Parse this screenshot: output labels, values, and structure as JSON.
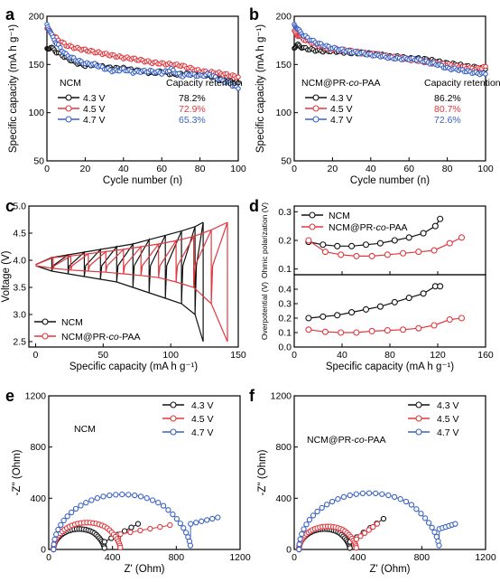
{
  "colors": {
    "black": "#111111",
    "red": "#e0383f",
    "blue": "#3a62c4"
  },
  "panels": [
    {
      "letter": "a"
    },
    {
      "letter": "b"
    },
    {
      "letter": "c"
    },
    {
      "letter": "d"
    },
    {
      "letter": "e"
    },
    {
      "letter": "f"
    }
  ],
  "chart_data": [
    {
      "panel": "a",
      "type": "scatter",
      "xlabel": "Cycle number (n)",
      "ylabel": "Specific capacity (mA h g⁻¹)",
      "xlim": [
        0,
        100
      ],
      "ylim": [
        50,
        200
      ],
      "xticks": [
        "0",
        "20",
        "40",
        "60",
        "80",
        "100"
      ],
      "yticks": [
        "50",
        "100",
        "150",
        "200"
      ],
      "header_name": "NCM",
      "header_retention": "Capacity retention",
      "series": [
        {
          "name": "4.3 V",
          "retention": "78.2%",
          "color": "black",
          "x": [
            0,
            2,
            5,
            10,
            15,
            20,
            25,
            30,
            35,
            40,
            45,
            50,
            55,
            60,
            65,
            70,
            75,
            80,
            85,
            90,
            95,
            100
          ],
          "y": [
            166,
            168,
            163,
            157,
            152,
            149,
            150,
            147,
            146,
            146,
            144,
            143,
            141,
            143,
            140,
            140,
            140,
            140,
            138,
            136,
            133,
            131
          ]
        },
        {
          "name": "4.5 V",
          "retention": "72.9%",
          "color": "red",
          "x": [
            0,
            2,
            5,
            10,
            15,
            20,
            25,
            30,
            35,
            40,
            45,
            50,
            55,
            60,
            65,
            70,
            75,
            80,
            85,
            90,
            95,
            100
          ],
          "y": [
            188,
            183,
            177,
            170,
            167,
            165,
            163,
            161,
            159,
            157,
            156,
            154,
            152,
            151,
            150,
            149,
            146,
            143,
            142,
            141,
            139,
            137
          ]
        },
        {
          "name": "4.7 V",
          "retention": "65.3%",
          "color": "blue",
          "x": [
            0,
            2,
            5,
            10,
            15,
            20,
            25,
            30,
            35,
            40,
            45,
            50,
            55,
            60,
            65,
            70,
            75,
            80,
            85,
            90,
            95,
            100
          ],
          "y": [
            192,
            182,
            172,
            160,
            155,
            151,
            150,
            146,
            143,
            145,
            142,
            143,
            143,
            141,
            145,
            138,
            140,
            138,
            140,
            134,
            131,
            125
          ]
        }
      ]
    },
    {
      "panel": "b",
      "type": "scatter",
      "xlabel": "Cycle number (n)",
      "ylabel": "Specific capacity (mA h g⁻¹)",
      "xlim": [
        0,
        100
      ],
      "ylim": [
        50,
        200
      ],
      "xticks": [
        "0",
        "20",
        "40",
        "60",
        "80",
        "100"
      ],
      "yticks": [
        "50",
        "100",
        "150",
        "200"
      ],
      "header_name_pre": "NCM@PR-",
      "header_name_it": "co",
      "header_name_post": "-PAA",
      "header_retention": "Capacity retention",
      "series": [
        {
          "name": "4.3 V",
          "retention": "86.2%",
          "color": "black",
          "x": [
            0,
            2,
            5,
            10,
            15,
            20,
            25,
            30,
            35,
            40,
            45,
            50,
            55,
            60,
            65,
            70,
            75,
            80,
            85,
            90,
            95,
            100
          ],
          "y": [
            168,
            170,
            167,
            165,
            164,
            164,
            163,
            162,
            162,
            161,
            160,
            158,
            158,
            156,
            156,
            155,
            153,
            151,
            150,
            148,
            147,
            145
          ]
        },
        {
          "name": "4.5 V",
          "retention": "80.7%",
          "color": "red",
          "x": [
            0,
            2,
            5,
            10,
            15,
            20,
            25,
            30,
            35,
            40,
            45,
            50,
            55,
            60,
            65,
            70,
            75,
            80,
            85,
            90,
            95,
            100
          ],
          "y": [
            184,
            180,
            176,
            172,
            168,
            166,
            165,
            164,
            162,
            161,
            160,
            158,
            157,
            155,
            154,
            152,
            151,
            150,
            148,
            147,
            145,
            148
          ]
        },
        {
          "name": "4.7 V",
          "retention": "72.6%",
          "color": "blue",
          "x": [
            0,
            2,
            5,
            10,
            15,
            20,
            25,
            30,
            35,
            40,
            45,
            50,
            55,
            60,
            65,
            70,
            75,
            80,
            85,
            90,
            95,
            100
          ],
          "y": [
            192,
            186,
            180,
            174,
            170,
            167,
            165,
            163,
            162,
            160,
            159,
            157,
            156,
            156,
            155,
            152,
            150,
            146,
            145,
            143,
            141,
            140
          ]
        }
      ]
    },
    {
      "panel": "c",
      "type": "line",
      "xlabel": "Specific capacity (mA h g⁻¹)",
      "ylabel": "Voltage (V)",
      "xlim": [
        -5,
        150
      ],
      "ylim": [
        2.4,
        5.0
      ],
      "xticks": [
        "0",
        "50",
        "100",
        "150"
      ],
      "yticks": [
        "2.5",
        "3.0",
        "3.5",
        "4.0",
        "4.5",
        "5.0"
      ],
      "series": [
        {
          "name": "NCM",
          "color": "black",
          "cycles": [
            12,
            24,
            36,
            48,
            60,
            72,
            84,
            96,
            108,
            118,
            124
          ],
          "charge_end": [
            4.05,
            4.1,
            4.15,
            4.2,
            4.25,
            4.3,
            4.38,
            4.46,
            4.54,
            4.62,
            4.7
          ],
          "discharge_low": [
            3.8,
            3.75,
            3.7,
            3.65,
            3.6,
            3.5,
            3.4,
            3.3,
            3.2,
            3.0,
            2.5
          ]
        },
        {
          "name_pre": "NCM@PR-",
          "name_it": "co",
          "name_post": "-PAA",
          "color": "red",
          "cycles": [
            13,
            26,
            39,
            52,
            65,
            78,
            91,
            104,
            117,
            130,
            142
          ],
          "charge_end": [
            4.05,
            4.08,
            4.12,
            4.16,
            4.2,
            4.25,
            4.3,
            4.36,
            4.44,
            4.56,
            4.7
          ],
          "discharge_low": [
            3.85,
            3.82,
            3.8,
            3.78,
            3.75,
            3.72,
            3.68,
            3.6,
            3.5,
            3.2,
            2.5
          ]
        }
      ]
    },
    {
      "panel": "d",
      "type": "scatter",
      "xlabel": "Specific capacity (mA h g⁻¹)",
      "xlim": [
        0,
        160
      ],
      "xticks": [
        "0",
        "40",
        "80",
        "120",
        "160"
      ],
      "top": {
        "ylabel": "Ohmic polarization (V)",
        "ylim": [
          0.08,
          0.32
        ],
        "yticks": [
          "0.1",
          "0.2",
          "0.3"
        ],
        "series": [
          {
            "name": "NCM",
            "color": "black",
            "x": [
              12,
              24,
              36,
              48,
              60,
              72,
              84,
              96,
              108,
              118,
              122
            ],
            "y": [
              0.195,
              0.185,
              0.18,
              0.18,
              0.185,
              0.19,
              0.2,
              0.21,
              0.225,
              0.25,
              0.275
            ]
          },
          {
            "name_pre": "NCM@PR-",
            "name_it": "co",
            "name_post": "-PAA",
            "color": "red",
            "x": [
              12,
              26,
              39,
              52,
              65,
              78,
              91,
              104,
              117,
              130,
              140
            ],
            "y": [
              0.2,
              0.16,
              0.15,
              0.145,
              0.145,
              0.15,
              0.155,
              0.16,
              0.165,
              0.19,
              0.21
            ]
          }
        ]
      },
      "bottom": {
        "ylabel": "Overpotential (V)",
        "ylim": [
          0.0,
          0.5
        ],
        "yticks": [
          "0.0",
          "0.1",
          "0.2",
          "0.3",
          "0.4"
        ],
        "series": [
          {
            "name": "NCM",
            "color": "black",
            "x": [
              12,
              24,
              36,
              48,
              60,
              72,
              84,
              96,
              108,
              118,
              122
            ],
            "y": [
              0.2,
              0.21,
              0.22,
              0.24,
              0.26,
              0.28,
              0.31,
              0.34,
              0.37,
              0.42,
              0.42
            ]
          },
          {
            "name_pre": "NCM@PR-",
            "name_it": "co",
            "name_post": "-PAA",
            "color": "red",
            "x": [
              12,
              26,
              39,
              52,
              65,
              78,
              91,
              104,
              117,
              130,
              140
            ],
            "y": [
              0.12,
              0.105,
              0.1,
              0.1,
              0.11,
              0.115,
              0.12,
              0.13,
              0.15,
              0.19,
              0.2
            ]
          }
        ]
      }
    },
    {
      "panel": "e",
      "type": "scatter",
      "xlabel": "Z' (Ohm)",
      "ylabel": "-Z'' (Ohm)",
      "xlim": [
        0,
        1200
      ],
      "ylim": [
        0,
        1200
      ],
      "xticks": [
        "0",
        "400",
        "800",
        "1200"
      ],
      "yticks": [
        "0",
        "400",
        "800",
        "1200"
      ],
      "inset_label": "NCM",
      "series": [
        {
          "name": "4.3 V",
          "color": "black",
          "x0": 30,
          "r": 160,
          "dip_y": 60,
          "tail": [
            [
              560,
              200
            ]
          ]
        },
        {
          "name": "4.5 V",
          "color": "red",
          "x0": 30,
          "r": 210,
          "dip_y": 120,
          "tail": [
            [
              760,
              190
            ]
          ]
        },
        {
          "name": "4.7 V",
          "color": "blue",
          "x0": 30,
          "r": 430,
          "dip_y": 200,
          "tail": [
            [
              1060,
              250
            ]
          ]
        }
      ]
    },
    {
      "panel": "f",
      "type": "scatter",
      "xlabel": "Z' (Ohm)",
      "ylabel": "-Z'' (Ohm)",
      "xlim": [
        0,
        1200
      ],
      "ylim": [
        0,
        1200
      ],
      "xticks": [
        "0",
        "400",
        "800",
        "1200"
      ],
      "yticks": [
        "0",
        "400",
        "800",
        "1200"
      ],
      "inset_pre": "NCM@PR-",
      "inset_it": "co",
      "inset_post": "-PAA",
      "series": [
        {
          "name": "4.3 V",
          "color": "black",
          "x0": 30,
          "r": 160,
          "dip_y": 60,
          "tail": [
            [
              560,
              240
            ]
          ]
        },
        {
          "name": "4.5 V",
          "color": "red",
          "x0": 30,
          "r": 180,
          "dip_y": 80,
          "tail": [
            [
              520,
              200
            ]
          ]
        },
        {
          "name": "4.7 V",
          "color": "blue",
          "x0": 30,
          "r": 440,
          "dip_y": 160,
          "tail": [
            [
              1010,
              200
            ]
          ]
        }
      ]
    }
  ]
}
